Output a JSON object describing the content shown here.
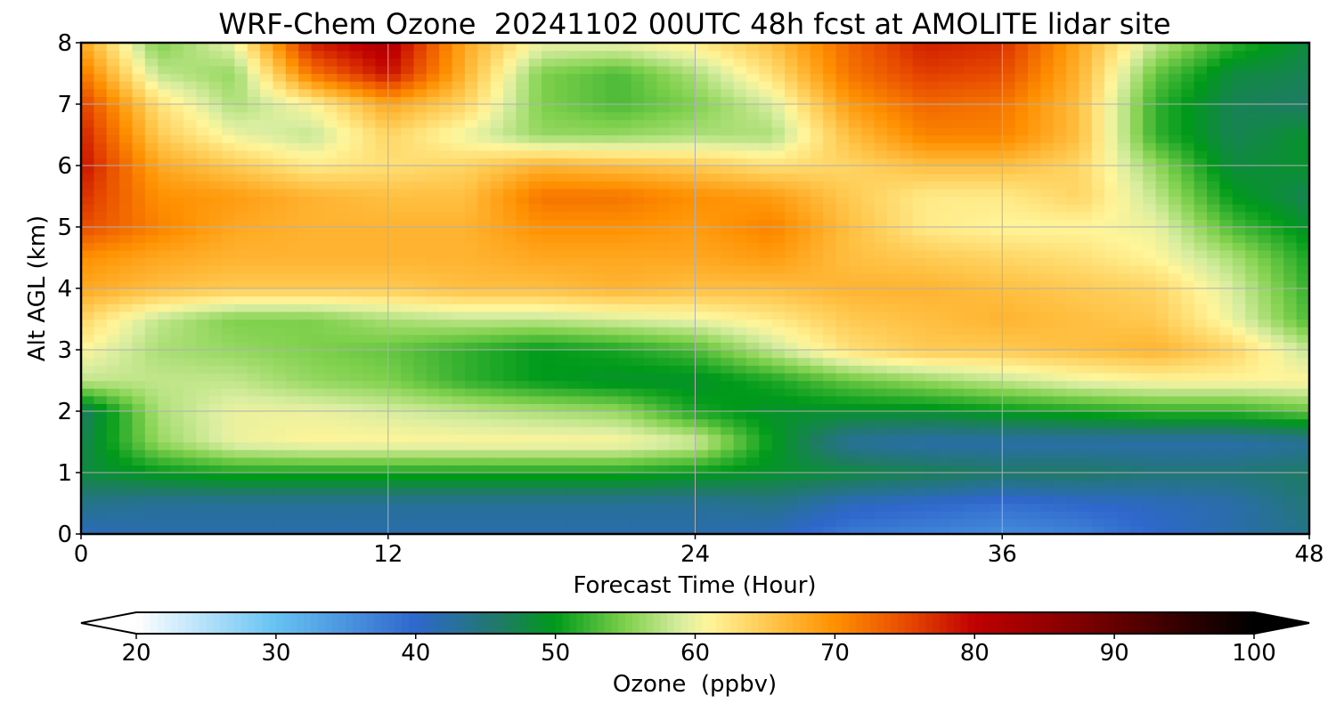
{
  "chart_data": {
    "type": "heatmap",
    "title": "WRF-Chem Ozone  20241102 00UTC 48h fcst at AMOLITE lidar site",
    "xlabel": "Forecast Time (Hour)",
    "ylabel": "Alt AGL (km)",
    "xlim": [
      0,
      48
    ],
    "ylim": [
      0,
      8
    ],
    "x_ticks": [
      0,
      12,
      24,
      36,
      48
    ],
    "y_ticks": [
      0,
      1,
      2,
      3,
      4,
      5,
      6,
      7,
      8
    ],
    "grid": true,
    "x": [
      0,
      3,
      6,
      9,
      12,
      15,
      18,
      21,
      24,
      27,
      30,
      33,
      36,
      39,
      42,
      45,
      48
    ],
    "y": [
      0,
      0.5,
      1,
      1.5,
      2,
      2.5,
      3,
      3.5,
      4,
      4.5,
      5,
      5.5,
      6,
      6.5,
      7,
      7.5,
      8
    ],
    "z": [
      [
        41,
        42,
        42,
        42,
        42,
        42,
        42,
        42,
        42,
        41,
        38,
        37,
        36,
        37,
        40,
        42,
        44
      ],
      [
        44,
        43,
        43,
        43,
        43,
        43,
        43,
        43,
        43,
        44,
        41,
        40,
        39,
        40,
        41,
        42,
        45
      ],
      [
        48,
        50,
        51,
        51,
        51,
        51,
        51,
        51,
        50,
        49,
        48,
        47,
        46,
        46,
        45,
        45,
        46
      ],
      [
        47,
        56,
        60,
        61,
        61,
        61,
        61,
        61,
        59,
        50,
        43,
        42,
        42,
        42,
        42,
        42,
        43
      ],
      [
        46,
        57,
        60,
        60,
        59,
        58,
        57,
        56,
        51,
        49,
        49,
        49,
        50,
        51,
        52,
        52,
        54
      ],
      [
        58,
        58,
        58,
        56,
        55,
        52,
        50,
        49,
        49,
        51,
        54,
        56,
        58,
        60,
        61,
        61,
        61
      ],
      [
        61,
        57,
        56,
        55,
        54,
        52,
        50,
        51,
        53,
        58,
        63,
        65,
        65,
        66,
        67,
        64,
        58
      ],
      [
        64,
        58,
        55,
        55,
        57,
        58,
        58,
        59,
        60,
        62,
        65,
        66,
        67,
        66,
        65,
        60,
        53
      ],
      [
        68,
        66,
        65,
        65,
        65,
        66,
        66,
        67,
        66,
        66,
        67,
        67,
        66,
        65,
        64,
        59,
        52
      ],
      [
        70,
        68,
        67,
        67,
        67,
        67,
        68,
        68,
        68,
        69,
        66,
        65,
        64,
        63,
        61,
        57,
        51
      ],
      [
        75,
        71,
        68,
        67,
        67,
        67,
        70,
        70,
        69,
        71,
        66,
        62,
        61,
        61,
        60,
        53,
        49
      ],
      [
        77,
        70,
        69,
        67,
        66,
        66,
        72,
        72,
        70,
        69,
        65,
        62,
        62,
        64,
        58,
        50,
        47
      ],
      [
        79,
        68,
        65,
        62,
        63,
        64,
        67,
        66,
        65,
        63,
        64,
        66,
        66,
        64,
        56,
        48,
        49
      ],
      [
        78,
        65,
        60,
        58,
        64,
        60,
        56,
        56,
        57,
        57,
        66,
        71,
        71,
        66,
        52,
        47,
        49
      ],
      [
        76,
        63,
        57,
        61,
        68,
        64,
        55,
        53,
        55,
        59,
        69,
        73,
        72,
        66,
        52,
        47,
        46
      ],
      [
        72,
        58,
        56,
        72,
        79,
        67,
        55,
        53,
        57,
        63,
        72,
        76,
        75,
        67,
        54,
        48,
        47
      ],
      [
        68,
        55,
        60,
        78,
        82,
        68,
        60,
        60,
        62,
        66,
        73,
        78,
        77,
        68,
        58,
        52,
        48
      ]
    ],
    "colorbar": {
      "label": "Ozone  (ppbv)",
      "min": 20,
      "max": 100,
      "ticks": [
        20,
        30,
        40,
        50,
        60,
        70,
        80,
        90,
        100
      ],
      "extend": "both",
      "stops": [
        {
          "v": 20,
          "c": "#ffffff"
        },
        {
          "v": 30,
          "c": "#66c2f2"
        },
        {
          "v": 40,
          "c": "#2f67cc"
        },
        {
          "v": 46,
          "c": "#1f7a66"
        },
        {
          "v": 50,
          "c": "#009a1a"
        },
        {
          "v": 55,
          "c": "#7ed04c"
        },
        {
          "v": 59,
          "c": "#d8eda0"
        },
        {
          "v": 61,
          "c": "#fff59a"
        },
        {
          "v": 66,
          "c": "#ffbf40"
        },
        {
          "v": 70,
          "c": "#ff9000"
        },
        {
          "v": 75,
          "c": "#e84c00"
        },
        {
          "v": 80,
          "c": "#c00000"
        },
        {
          "v": 88,
          "c": "#7a0000"
        },
        {
          "v": 95,
          "c": "#300000"
        },
        {
          "v": 100,
          "c": "#000000"
        }
      ]
    }
  }
}
